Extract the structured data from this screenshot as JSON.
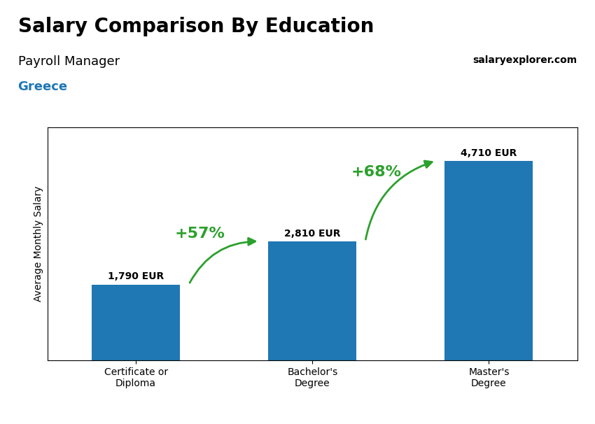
{
  "chart_data": {
    "type": "bar",
    "title": "Salary Comparison By Education",
    "subtitle": "Payroll Manager",
    "ylabel": "Average Monthly Salary",
    "categories": [
      "Certificate or\nDiploma",
      "Bachelor's\nDegree",
      "Master's\nDegree"
    ],
    "values": [
      1790,
      2810,
      4710
    ],
    "value_labels": [
      "1,790 EUR",
      "2,810 EUR",
      "4,710 EUR"
    ],
    "data_labels": true,
    "annotations": [
      "+57%",
      "+68%",
      "Greece",
      "salaryexplorer.com"
    ],
    "ylim": [
      0,
      5500
    ],
    "tick_labels": "x",
    "grid": false
  }
}
